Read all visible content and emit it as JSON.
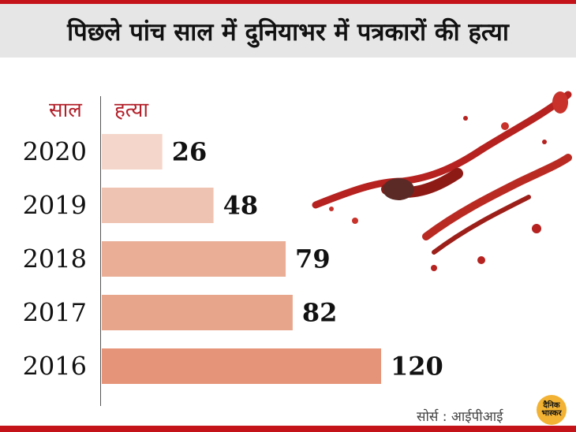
{
  "header": {
    "title": "पिछले पांच साल में दुनियाभर में पत्रकारों की हत्या"
  },
  "chart_data": {
    "type": "bar",
    "orientation": "horizontal",
    "categories": [
      "2020",
      "2019",
      "2018",
      "2017",
      "2016"
    ],
    "values": [
      26,
      48,
      79,
      82,
      120
    ],
    "category_header": "साल",
    "value_header": "हत्या",
    "bar_colors": [
      "#f4d7ca",
      "#efc3b1",
      "#eaae97",
      "#e7a58c",
      "#e59479"
    ]
  },
  "footer": {
    "source": "सोर्स : आईपीआई",
    "logo_line1": "दैनिक",
    "logo_line2": "भास्कर"
  },
  "colors": {
    "accent": "#c5131a",
    "header_text": "#b3202a",
    "title_band": "#e6e6e6"
  }
}
